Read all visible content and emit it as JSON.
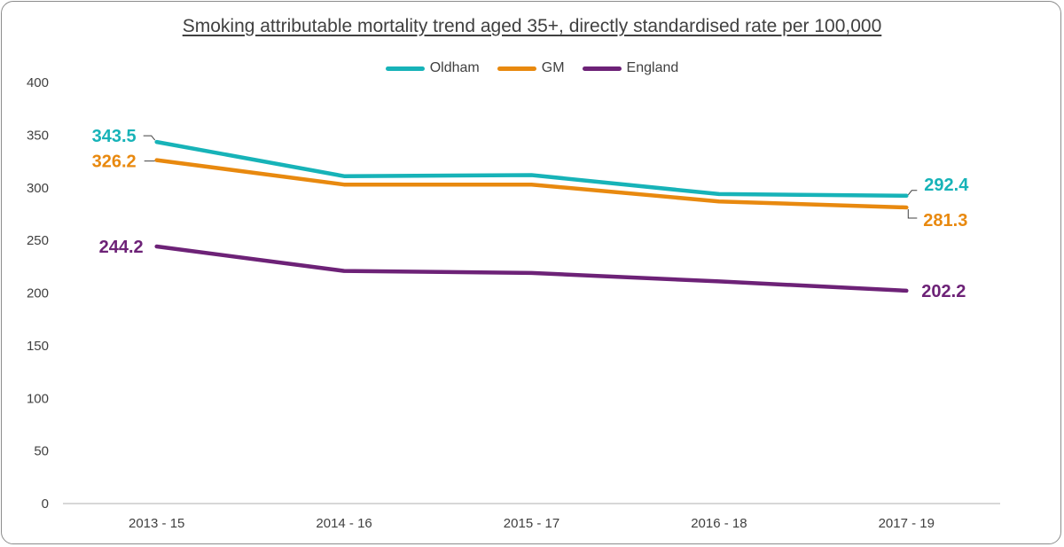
{
  "chart_data": {
    "type": "line",
    "title": "Smoking attributable mortality trend aged 35+, directly standardised rate per 100,000",
    "xlabel": "",
    "ylabel": "",
    "ylim": [
      0,
      400
    ],
    "yticks": [
      0,
      50,
      100,
      150,
      200,
      250,
      300,
      350,
      400
    ],
    "grid": false,
    "legend_position": "top",
    "categories": [
      "2013 - 15",
      "2014 - 16",
      "2015 - 17",
      "2016 - 18",
      "2017 - 19"
    ],
    "series": [
      {
        "name": "Oldham",
        "color": "#17b3b8",
        "values": [
          343.5,
          311,
          312,
          294,
          292.4
        ],
        "labels": [
          "343.5",
          null,
          null,
          null,
          "292.4"
        ]
      },
      {
        "name": "GM",
        "color": "#e8890f",
        "values": [
          326.2,
          303,
          303,
          287,
          281.3
        ],
        "labels": [
          "326.2",
          null,
          null,
          null,
          "281.3"
        ]
      },
      {
        "name": "England",
        "color": "#6d2277",
        "values": [
          244.2,
          221,
          219,
          211,
          202.2
        ],
        "labels": [
          "244.2",
          null,
          null,
          null,
          "202.2"
        ]
      }
    ]
  }
}
